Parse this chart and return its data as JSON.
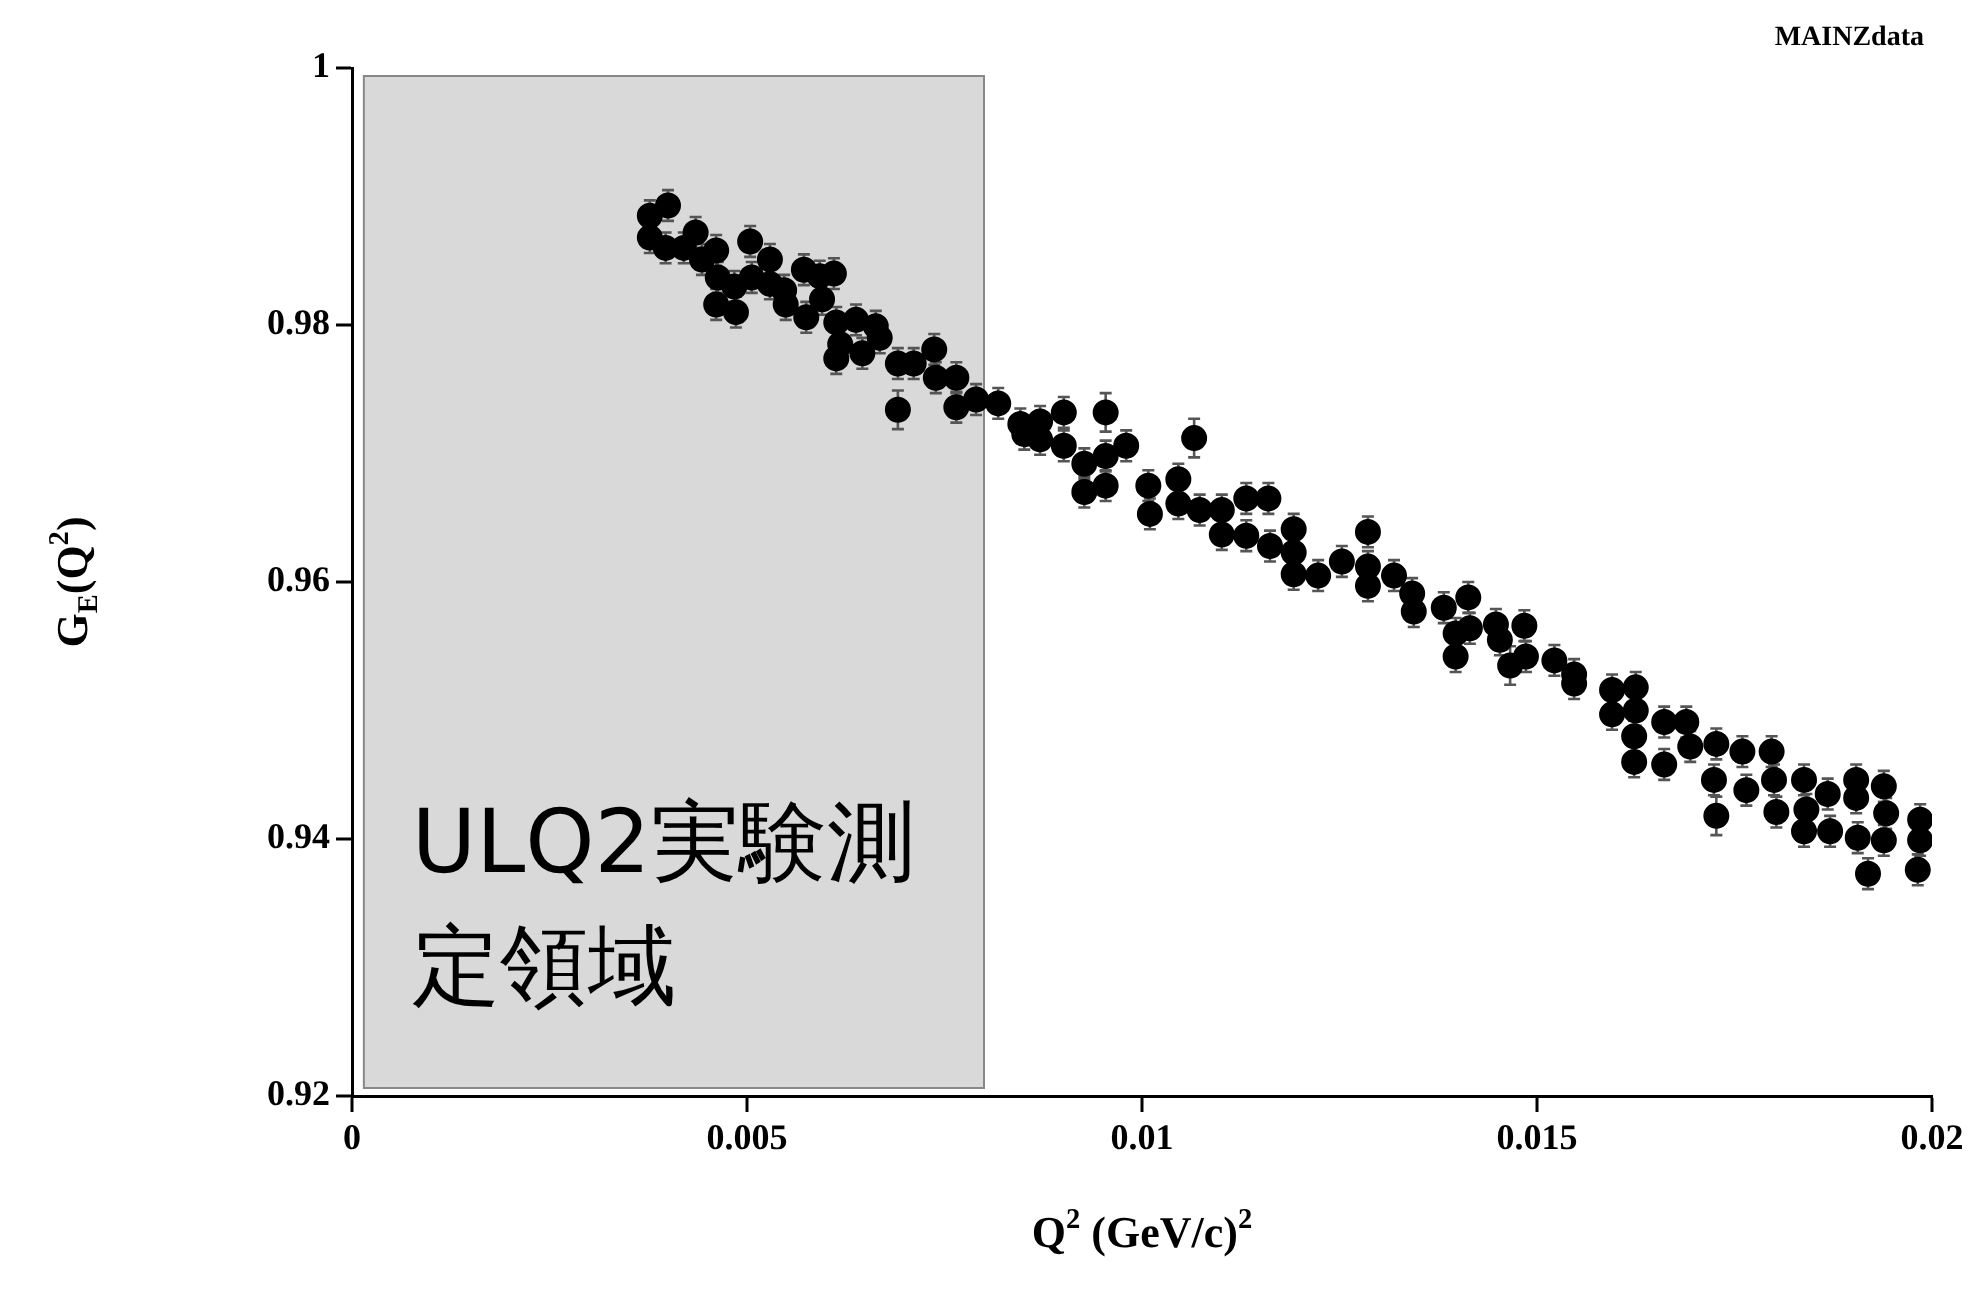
{
  "chart_data": {
    "type": "scatter",
    "xlabel": "Q$^{2}$ (GeV/c)$^{2}$",
    "ylabel": "G$_{E}$(Q$^{2}$)",
    "annotations": [
      "MAINZdata"
    ],
    "xlim": [
      0,
      0.02
    ],
    "xticks": [
      0,
      0.005,
      0.01,
      0.015,
      0.02
    ],
    "ylim": [
      0.92,
      1
    ],
    "yticks": [
      0.92,
      0.94,
      0.96,
      0.98,
      1
    ],
    "grid": false,
    "legend": false,
    "marker": "circle",
    "bands": [
      {
        "axis": "x",
        "from": 0.00015,
        "to": 0.008,
        "label": "ULQ2実験測定領域",
        "color": "#d9d9d9"
      }
    ],
    "series": [
      {
        "color": "#000000",
        "x": [
          0.00377,
          0.00377,
          0.004,
          0.00397,
          0.0042,
          0.00435,
          0.00443,
          0.00461,
          0.00463,
          0.00461,
          0.00486,
          0.00484,
          0.00504,
          0.00506,
          0.00529,
          0.00529,
          0.00549,
          0.00547,
          0.00572,
          0.00575,
          0.00592,
          0.00595,
          0.0061,
          0.00613,
          0.00613,
          0.00618,
          0.00638,
          0.00646,
          0.00663,
          0.00668,
          0.00691,
          0.00691,
          0.00711,
          0.00737,
          0.00739,
          0.00765,
          0.00765,
          0.0079,
          0.00818,
          0.00846,
          0.00851,
          0.00871,
          0.00871,
          0.00901,
          0.00901,
          0.00927,
          0.00927,
          0.00954,
          0.00954,
          0.00954,
          0.0098,
          0.01008,
          0.0101,
          0.01046,
          0.01046,
          0.01066,
          0.01073,
          0.01101,
          0.01101,
          0.01132,
          0.01132,
          0.0116,
          0.01162,
          0.01192,
          0.01192,
          0.01192,
          0.01223,
          0.01253,
          0.01286,
          0.01286,
          0.01286,
          0.01319,
          0.01342,
          0.01344,
          0.01382,
          0.01397,
          0.01397,
          0.01413,
          0.01415,
          0.01448,
          0.01453,
          0.01466,
          0.01484,
          0.01486,
          0.01522,
          0.01547,
          0.01547,
          0.01595,
          0.01595,
          0.01625,
          0.01625,
          0.01623,
          0.01623,
          0.01661,
          0.01661,
          0.01689,
          0.01694,
          0.01727,
          0.01724,
          0.01727,
          0.0176,
          0.01765,
          0.01797,
          0.018,
          0.01803,
          0.01838,
          0.01841,
          0.01838,
          0.01868,
          0.01871,
          0.01904,
          0.01904,
          0.01906,
          0.01919,
          0.01939,
          0.01942,
          0.01939,
          0.01985,
          0.01985,
          0.01982
        ],
        "values": [
          0.9885,
          0.9868,
          0.9893,
          0.986,
          0.986,
          0.9872,
          0.9851,
          0.9858,
          0.9837,
          0.9816,
          0.981,
          0.983,
          0.9865,
          0.9837,
          0.9851,
          0.9832,
          0.9816,
          0.9827,
          0.9843,
          0.9806,
          0.9838,
          0.982,
          0.984,
          0.9802,
          0.9774,
          0.9785,
          0.9804,
          0.9778,
          0.9799,
          0.979,
          0.977,
          0.9734,
          0.977,
          0.9781,
          0.9759,
          0.9759,
          0.9736,
          0.9742,
          0.9739,
          0.9723,
          0.9715,
          0.9725,
          0.9711,
          0.9732,
          0.9706,
          0.9692,
          0.967,
          0.9732,
          0.9698,
          0.9675,
          0.9706,
          0.9675,
          0.9653,
          0.968,
          0.9661,
          0.9712,
          0.9656,
          0.9656,
          0.9637,
          0.9665,
          0.9636,
          0.9665,
          0.9628,
          0.9641,
          0.9623,
          0.9606,
          0.9605,
          0.9616,
          0.9639,
          0.9612,
          0.9597,
          0.9605,
          0.9591,
          0.9577,
          0.958,
          0.9542,
          0.956,
          0.9588,
          0.9564,
          0.9567,
          0.9555,
          0.9535,
          0.9566,
          0.9542,
          0.9539,
          0.9528,
          0.9521,
          0.9516,
          0.9497,
          0.9518,
          0.95,
          0.948,
          0.946,
          0.9491,
          0.9458,
          0.9491,
          0.9472,
          0.9474,
          0.9446,
          0.9418,
          0.9468,
          0.9438,
          0.9468,
          0.9446,
          0.9421,
          0.9446,
          0.9423,
          0.9406,
          0.9435,
          0.9406,
          0.9446,
          0.9432,
          0.9401,
          0.9373,
          0.9441,
          0.942,
          0.9399,
          0.9415,
          0.9399,
          0.9376
        ],
        "errors": [
          0.0012,
          0.0012,
          0.0012,
          0.0012,
          0.0012,
          0.0012,
          0.0012,
          0.0012,
          0.0012,
          0.0012,
          0.0012,
          0.0012,
          0.0012,
          0.0012,
          0.0012,
          0.0012,
          0.0012,
          0.0012,
          0.0012,
          0.0012,
          0.0012,
          0.0012,
          0.0012,
          0.0012,
          0.0012,
          0.0012,
          0.0012,
          0.0012,
          0.0012,
          0.0012,
          0.0012,
          0.0015,
          0.0012,
          0.0012,
          0.0012,
          0.0012,
          0.0012,
          0.0012,
          0.0012,
          0.0012,
          0.0012,
          0.0012,
          0.0012,
          0.0012,
          0.0012,
          0.0012,
          0.0012,
          0.0015,
          0.0012,
          0.0012,
          0.0012,
          0.0012,
          0.0012,
          0.0012,
          0.0012,
          0.0015,
          0.0012,
          0.0012,
          0.0012,
          0.0012,
          0.0012,
          0.0012,
          0.0012,
          0.0012,
          0.0012,
          0.0012,
          0.0012,
          0.0012,
          0.0012,
          0.0012,
          0.0012,
          0.0012,
          0.0012,
          0.0012,
          0.0012,
          0.0012,
          0.0012,
          0.0012,
          0.0012,
          0.0012,
          0.0012,
          0.0015,
          0.0012,
          0.0012,
          0.0012,
          0.0012,
          0.0012,
          0.0012,
          0.0012,
          0.0012,
          0.0012,
          0.0012,
          0.0012,
          0.0012,
          0.0012,
          0.0012,
          0.0012,
          0.0012,
          0.0012,
          0.0015,
          0.0012,
          0.0012,
          0.0012,
          0.0012,
          0.0012,
          0.0012,
          0.0012,
          0.0012,
          0.0012,
          0.0012,
          0.0012,
          0.0012,
          0.0012,
          0.0012,
          0.0012,
          0.0012,
          0.0012,
          0.0012,
          0.0012,
          0.0012
        ]
      }
    ]
  }
}
